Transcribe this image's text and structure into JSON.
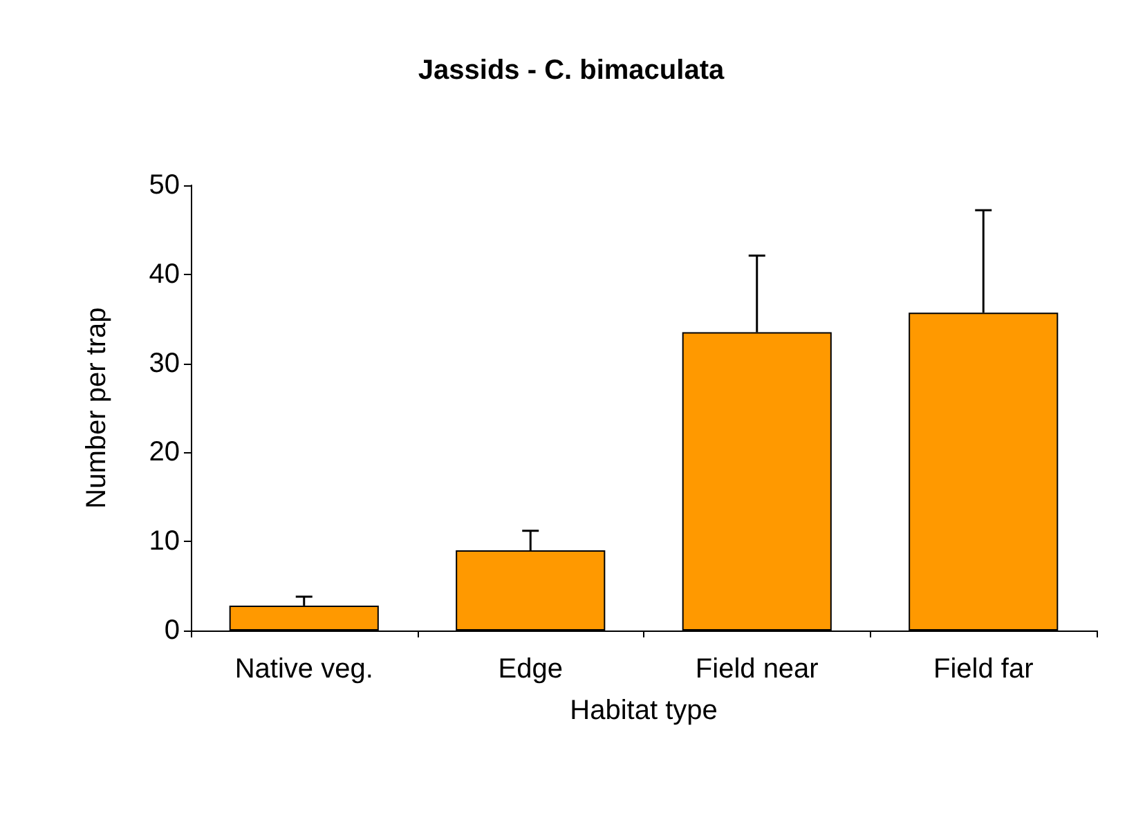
{
  "chart_data": {
    "type": "bar",
    "title": "Jassids - C. bimaculata",
    "xlabel": "Habitat type",
    "ylabel": "Number per trap",
    "categories": [
      "Native veg.",
      "Edge",
      "Field near",
      "Field far"
    ],
    "values": [
      2.8,
      9.0,
      33.5,
      35.7
    ],
    "errors": [
      [
        2.8,
        3.8
      ],
      [
        9.0,
        11.2
      ],
      [
        33.5,
        42.1
      ],
      [
        35.7,
        47.2
      ]
    ],
    "color": "#ff9900",
    "ylim": [
      0,
      50
    ],
    "yticks": [
      0,
      10,
      20,
      30,
      40,
      50
    ],
    "grid": false
  }
}
